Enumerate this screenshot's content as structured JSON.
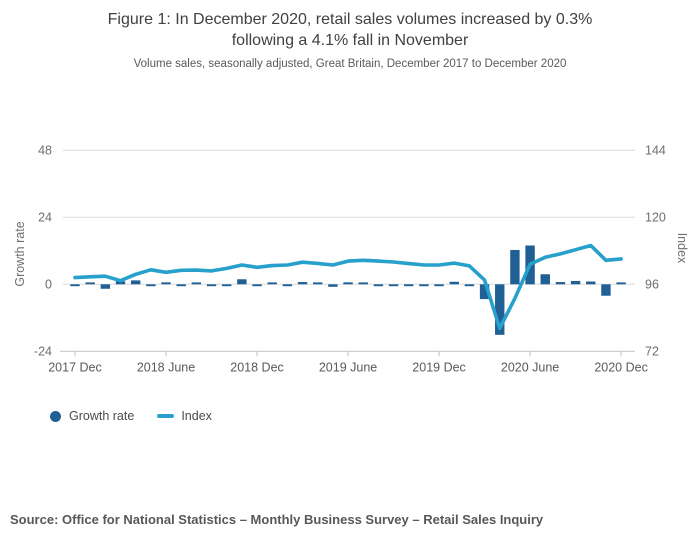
{
  "title": {
    "line1": "Figure 1: In December 2020, retail sales volumes increased by 0.3%",
    "line2": "following a 4.1% fall in November"
  },
  "subtitle": "Volume sales, seasonally adjusted, Great Britain, December 2017 to December 2020",
  "source": "Source: Office for National Statistics – Monthly Business Survey – Retail Sales Inquiry",
  "legend": [
    {
      "label": "Growth rate",
      "swatch": "circle",
      "color": "#206095"
    },
    {
      "label": "Index",
      "swatch": "line",
      "color": "#27a0cc"
    }
  ],
  "colors": {
    "bar": "#206095",
    "line": "#27a0cc",
    "gridline": "#dcdcdc",
    "axis_line": "#c4cad0",
    "tick_text": "#6e6e72",
    "axis_title_text": "#707070"
  },
  "chart_data": {
    "type": "bar+line",
    "title": "Figure 1: In December 2020, retail sales volumes increased by 0.3% following a 4.1% fall in November",
    "subtitle": "Volume sales, seasonally adjusted, Great Britain, December 2017 to December 2020",
    "x_tick_labels": [
      "2017 Dec",
      "2018 June",
      "2018 Dec",
      "2019 June",
      "2019 Dec",
      "2020 June",
      "2020 Dec"
    ],
    "categories": [
      "2017 Dec",
      "2018 Jan",
      "2018 Feb",
      "2018 Mar",
      "2018 Apr",
      "2018 May",
      "2018 Jun",
      "2018 Jul",
      "2018 Aug",
      "2018 Sep",
      "2018 Oct",
      "2018 Nov",
      "2018 Dec",
      "2019 Jan",
      "2019 Feb",
      "2019 Mar",
      "2019 Apr",
      "2019 May",
      "2019 Jun",
      "2019 Jul",
      "2019 Aug",
      "2019 Sep",
      "2019 Oct",
      "2019 Nov",
      "2019 Dec",
      "2020 Jan",
      "2020 Feb",
      "2020 Mar",
      "2020 Apr",
      "2020 May",
      "2020 Jun",
      "2020 Jul",
      "2020 Aug",
      "2020 Sep",
      "2020 Oct",
      "2020 Nov",
      "2020 Dec"
    ],
    "series": [
      {
        "name": "Growth rate",
        "type": "bar",
        "axis": "left",
        "values": [
          -0.6,
          0.3,
          -1.6,
          1.0,
          1.4,
          -0.6,
          0.7,
          -0.4,
          0.6,
          -0.4,
          -0.3,
          1.8,
          -0.5,
          0.5,
          -0.3,
          0.8,
          0.3,
          -0.9,
          0.7,
          0.4,
          -0.5,
          -0.3,
          -0.2,
          -0.5,
          -0.4,
          0.9,
          -0.3,
          -5.3,
          -18.1,
          12.3,
          13.9,
          3.6,
          0.8,
          1.2,
          1.0,
          -4.1,
          0.3
        ]
      },
      {
        "name": "Index",
        "type": "line",
        "axis": "right",
        "values": [
          98.4,
          98.7,
          98.9,
          97.3,
          99.6,
          101.2,
          100.3,
          101.0,
          101.1,
          100.8,
          101.7,
          102.9,
          102.1,
          102.7,
          102.9,
          103.9,
          103.5,
          102.9,
          104.3,
          104.6,
          104.3,
          104.0,
          103.4,
          102.9,
          102.9,
          103.6,
          102.6,
          97.5,
          80.2,
          91.0,
          103.2,
          105.7,
          106.9,
          108.4,
          109.9,
          104.6,
          105.1
        ]
      }
    ],
    "left_axis": {
      "label": "Growth rate",
      "ticks": [
        48,
        24,
        0,
        -24
      ],
      "range": [
        -24,
        48
      ]
    },
    "right_axis": {
      "label": "Index",
      "ticks": [
        144,
        120,
        96,
        72
      ],
      "range": [
        72,
        144
      ]
    },
    "grid": true,
    "legend_position": "bottom-left"
  }
}
